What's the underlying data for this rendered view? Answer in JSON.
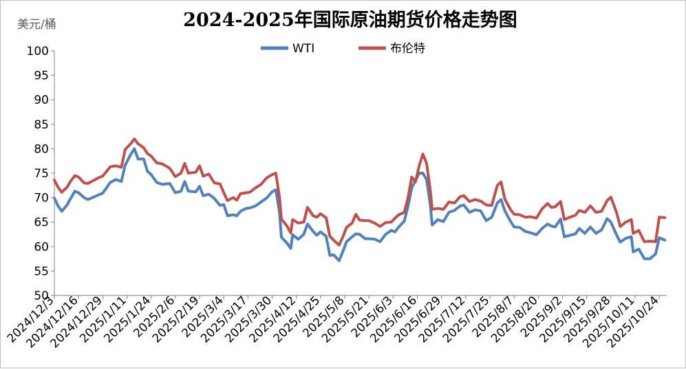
{
  "chart_data": {
    "type": "line",
    "title": "2024-2025年国际原油期货价格走势图",
    "ylabel": "美元/桶",
    "xlabel": "",
    "ylim": [
      50,
      100
    ],
    "yticks": [
      "50",
      "55",
      "60",
      "65",
      "70",
      "75",
      "80",
      "85",
      "90",
      "95",
      "100"
    ],
    "grid": false,
    "legend_position": "top-center",
    "x_tick_labels": [
      "2024/12/3",
      "2024/12/16",
      "2024/12/29",
      "2025/1/11",
      "2025/1/24",
      "2025/2/6",
      "2025/2/19",
      "2025/3/4",
      "2025/3/17",
      "2025/3/30",
      "2025/4/12",
      "2025/4/25",
      "2025/5/8",
      "2025/5/21",
      "2025/6/3",
      "2025/6/16",
      "2025/6/29",
      "2025/7/12",
      "2025/7/25",
      "2025/8/7",
      "2025/8/20",
      "2025/9/2",
      "2025/9/15",
      "2025/9/28",
      "2025/10/11",
      "2025/10/24"
    ],
    "x_range": [
      "2024/12/3",
      "2025/10/28"
    ],
    "series": [
      {
        "name": "WTI",
        "color": "#4f81bd",
        "points": [
          [
            "2024/12/3",
            69.9
          ],
          [
            "2024/12/5",
            68.3
          ],
          [
            "2024/12/7",
            67.2
          ],
          [
            "2024/12/10",
            68.6
          ],
          [
            "2024/12/12",
            70.0
          ],
          [
            "2024/12/14",
            71.3
          ],
          [
            "2024/12/16",
            71.0
          ],
          [
            "2024/12/19",
            70.0
          ],
          [
            "2024/12/21",
            69.6
          ],
          [
            "2024/12/24",
            70.1
          ],
          [
            "2024/12/27",
            70.6
          ],
          [
            "2024/12/29",
            70.9
          ],
          [
            "2025/1/2",
            73.1
          ],
          [
            "2025/1/5",
            73.7
          ],
          [
            "2025/1/8",
            73.3
          ],
          [
            "2025/1/10",
            76.6
          ],
          [
            "2025/1/13",
            78.8
          ],
          [
            "2025/1/15",
            80.0
          ],
          [
            "2025/1/17",
            77.9
          ],
          [
            "2025/1/20",
            77.9
          ],
          [
            "2025/1/22",
            75.4
          ],
          [
            "2025/1/24",
            74.7
          ],
          [
            "2025/1/27",
            73.1
          ],
          [
            "2025/1/30",
            72.7
          ],
          [
            "2025/2/3",
            72.9
          ],
          [
            "2025/2/6",
            71.0
          ],
          [
            "2025/2/9",
            71.3
          ],
          [
            "2025/2/11",
            73.3
          ],
          [
            "2025/2/13",
            71.3
          ],
          [
            "2025/2/17",
            71.2
          ],
          [
            "2025/2/19",
            72.3
          ],
          [
            "2025/2/21",
            70.4
          ],
          [
            "2025/2/24",
            70.7
          ],
          [
            "2025/2/27",
            69.8
          ],
          [
            "2025/3/2",
            68.4
          ],
          [
            "2025/3/4",
            68.6
          ],
          [
            "2025/3/6",
            66.3
          ],
          [
            "2025/3/9",
            66.5
          ],
          [
            "2025/3/11",
            66.3
          ],
          [
            "2025/3/13",
            67.2
          ],
          [
            "2025/3/16",
            67.8
          ],
          [
            "2025/3/18",
            67.9
          ],
          [
            "2025/3/21",
            68.3
          ],
          [
            "2025/3/24",
            69.1
          ],
          [
            "2025/3/27",
            69.9
          ],
          [
            "2025/3/30",
            71.2
          ],
          [
            "2025/4/1",
            71.6
          ],
          [
            "2025/4/3",
            66.9
          ],
          [
            "2025/4/4",
            61.9
          ],
          [
            "2025/4/7",
            60.7
          ],
          [
            "2025/4/9",
            59.6
          ],
          [
            "2025/4/10",
            62.4
          ],
          [
            "2025/4/13",
            61.5
          ],
          [
            "2025/4/16",
            62.5
          ],
          [
            "2025/4/18",
            64.6
          ],
          [
            "2025/4/21",
            63.1
          ],
          [
            "2025/4/23",
            62.3
          ],
          [
            "2025/4/25",
            63.0
          ],
          [
            "2025/4/28",
            62.1
          ],
          [
            "2025/4/30",
            58.2
          ],
          [
            "2025/5/2",
            58.3
          ],
          [
            "2025/5/5",
            57.1
          ],
          [
            "2025/5/7",
            59.0
          ],
          [
            "2025/5/9",
            61.0
          ],
          [
            "2025/5/12",
            62.0
          ],
          [
            "2025/5/14",
            62.6
          ],
          [
            "2025/5/16",
            62.5
          ],
          [
            "2025/5/19",
            61.6
          ],
          [
            "2025/5/21",
            61.6
          ],
          [
            "2025/5/24",
            61.5
          ],
          [
            "2025/5/27",
            61.0
          ],
          [
            "2025/5/30",
            62.5
          ],
          [
            "2025/6/2",
            63.3
          ],
          [
            "2025/6/4",
            63.0
          ],
          [
            "2025/6/6",
            64.0
          ],
          [
            "2025/6/9",
            65.2
          ],
          [
            "2025/6/11",
            68.2
          ],
          [
            "2025/6/13",
            72.0
          ],
          [
            "2025/6/15",
            73.5
          ],
          [
            "2025/6/17",
            75.0
          ],
          [
            "2025/6/19",
            75.0
          ],
          [
            "2025/6/21",
            73.7
          ],
          [
            "2025/6/23",
            68.5
          ],
          [
            "2025/6/24",
            64.4
          ],
          [
            "2025/6/27",
            65.5
          ],
          [
            "2025/6/30",
            65.1
          ],
          [
            "2025/7/3",
            67.0
          ],
          [
            "2025/7/6",
            67.4
          ],
          [
            "2025/7/9",
            68.3
          ],
          [
            "2025/7/11",
            68.5
          ],
          [
            "2025/7/14",
            67.0
          ],
          [
            "2025/7/17",
            67.5
          ],
          [
            "2025/7/20",
            67.3
          ],
          [
            "2025/7/23",
            65.3
          ],
          [
            "2025/7/26",
            66.0
          ],
          [
            "2025/7/29",
            68.9
          ],
          [
            "2025/7/31",
            69.6
          ],
          [
            "2025/8/2",
            67.3
          ],
          [
            "2025/8/5",
            65.2
          ],
          [
            "2025/8/7",
            64.0
          ],
          [
            "2025/8/10",
            63.9
          ],
          [
            "2025/8/13",
            63.1
          ],
          [
            "2025/8/16",
            62.8
          ],
          [
            "2025/8/19",
            62.4
          ],
          [
            "2025/8/22",
            63.7
          ],
          [
            "2025/8/25",
            64.6
          ],
          [
            "2025/8/27",
            64.2
          ],
          [
            "2025/8/29",
            64.0
          ],
          [
            "2025/9/1",
            65.6
          ],
          [
            "2025/9/3",
            62.0
          ],
          [
            "2025/9/6",
            62.3
          ],
          [
            "2025/9/9",
            62.6
          ],
          [
            "2025/9/11",
            63.7
          ],
          [
            "2025/9/14",
            62.7
          ],
          [
            "2025/9/17",
            64.0
          ],
          [
            "2025/9/20",
            62.7
          ],
          [
            "2025/9/23",
            63.4
          ],
          [
            "2025/9/26",
            65.7
          ],
          [
            "2025/9/28",
            65.0
          ],
          [
            "2025/10/1",
            62.4
          ],
          [
            "2025/10/3",
            60.9
          ],
          [
            "2025/10/6",
            61.7
          ],
          [
            "2025/10/9",
            62.0
          ],
          [
            "2025/10/10",
            58.9
          ],
          [
            "2025/10/13",
            59.5
          ],
          [
            "2025/10/16",
            57.5
          ],
          [
            "2025/10/19",
            57.5
          ],
          [
            "2025/10/22",
            58.5
          ],
          [
            "2025/10/24",
            61.8
          ],
          [
            "2025/10/27",
            61.3
          ]
        ]
      },
      {
        "name": "布伦特",
        "color": "#c0504d",
        "points": [
          [
            "2024/12/3",
            73.6
          ],
          [
            "2024/12/5",
            72.1
          ],
          [
            "2024/12/7",
            71.1
          ],
          [
            "2024/12/10",
            72.2
          ],
          [
            "2024/12/12",
            73.5
          ],
          [
            "2024/12/14",
            74.5
          ],
          [
            "2024/12/16",
            74.2
          ],
          [
            "2024/12/19",
            73.0
          ],
          [
            "2024/12/21",
            72.9
          ],
          [
            "2024/12/24",
            73.5
          ],
          [
            "2024/12/27",
            74.1
          ],
          [
            "2024/12/29",
            74.4
          ],
          [
            "2025/1/2",
            76.3
          ],
          [
            "2025/1/5",
            76.5
          ],
          [
            "2025/1/8",
            76.2
          ],
          [
            "2025/1/10",
            79.8
          ],
          [
            "2025/1/13",
            81.0
          ],
          [
            "2025/1/15",
            82.0
          ],
          [
            "2025/1/17",
            81.0
          ],
          [
            "2025/1/20",
            80.2
          ],
          [
            "2025/1/22",
            79.0
          ],
          [
            "2025/1/24",
            78.5
          ],
          [
            "2025/1/27",
            77.1
          ],
          [
            "2025/1/30",
            76.9
          ],
          [
            "2025/2/3",
            76.0
          ],
          [
            "2025/2/6",
            74.3
          ],
          [
            "2025/2/9",
            75.0
          ],
          [
            "2025/2/11",
            77.0
          ],
          [
            "2025/2/13",
            75.0
          ],
          [
            "2025/2/17",
            75.2
          ],
          [
            "2025/2/19",
            76.5
          ],
          [
            "2025/2/21",
            74.4
          ],
          [
            "2025/2/24",
            74.8
          ],
          [
            "2025/2/27",
            73.0
          ],
          [
            "2025/3/2",
            72.8
          ],
          [
            "2025/3/4",
            71.0
          ],
          [
            "2025/3/6",
            69.4
          ],
          [
            "2025/3/9",
            70.0
          ],
          [
            "2025/3/11",
            69.5
          ],
          [
            "2025/3/13",
            70.8
          ],
          [
            "2025/3/16",
            71.0
          ],
          [
            "2025/3/18",
            71.1
          ],
          [
            "2025/3/21",
            72.0
          ],
          [
            "2025/3/24",
            72.7
          ],
          [
            "2025/3/27",
            74.0
          ],
          [
            "2025/3/30",
            74.7
          ],
          [
            "2025/4/1",
            75.0
          ],
          [
            "2025/4/3",
            70.0
          ],
          [
            "2025/4/4",
            65.6
          ],
          [
            "2025/4/7",
            64.2
          ],
          [
            "2025/4/9",
            62.8
          ],
          [
            "2025/4/10",
            65.5
          ],
          [
            "2025/4/13",
            64.8
          ],
          [
            "2025/4/16",
            65.0
          ],
          [
            "2025/4/18",
            68.0
          ],
          [
            "2025/4/21",
            66.3
          ],
          [
            "2025/4/23",
            66.0
          ],
          [
            "2025/4/25",
            66.7
          ],
          [
            "2025/4/28",
            65.9
          ],
          [
            "2025/4/30",
            62.1
          ],
          [
            "2025/5/2",
            61.3
          ],
          [
            "2025/5/5",
            60.3
          ],
          [
            "2025/5/7",
            62.0
          ],
          [
            "2025/5/9",
            63.9
          ],
          [
            "2025/5/12",
            64.8
          ],
          [
            "2025/5/14",
            66.6
          ],
          [
            "2025/5/16",
            65.4
          ],
          [
            "2025/5/19",
            65.3
          ],
          [
            "2025/5/21",
            65.3
          ],
          [
            "2025/5/24",
            64.8
          ],
          [
            "2025/5/27",
            64.1
          ],
          [
            "2025/5/30",
            64.9
          ],
          [
            "2025/6/2",
            65.0
          ],
          [
            "2025/6/4",
            65.8
          ],
          [
            "2025/6/6",
            66.5
          ],
          [
            "2025/6/9",
            67.0
          ],
          [
            "2025/6/11",
            70.0
          ],
          [
            "2025/6/13",
            74.2
          ],
          [
            "2025/6/15",
            73.2
          ],
          [
            "2025/6/17",
            76.5
          ],
          [
            "2025/6/19",
            78.9
          ],
          [
            "2025/6/21",
            77.0
          ],
          [
            "2025/6/23",
            71.5
          ],
          [
            "2025/6/24",
            67.6
          ],
          [
            "2025/6/27",
            67.8
          ],
          [
            "2025/6/30",
            67.6
          ],
          [
            "2025/7/3",
            69.1
          ],
          [
            "2025/7/6",
            68.9
          ],
          [
            "2025/7/9",
            70.2
          ],
          [
            "2025/7/11",
            70.4
          ],
          [
            "2025/7/14",
            69.2
          ],
          [
            "2025/7/17",
            69.6
          ],
          [
            "2025/7/20",
            69.3
          ],
          [
            "2025/7/23",
            68.5
          ],
          [
            "2025/7/26",
            68.4
          ],
          [
            "2025/7/29",
            72.5
          ],
          [
            "2025/7/31",
            73.2
          ],
          [
            "2025/8/2",
            69.7
          ],
          [
            "2025/8/5",
            67.6
          ],
          [
            "2025/8/7",
            66.6
          ],
          [
            "2025/8/10",
            66.5
          ],
          [
            "2025/8/13",
            66.0
          ],
          [
            "2025/8/16",
            66.1
          ],
          [
            "2025/8/19",
            65.8
          ],
          [
            "2025/8/22",
            67.7
          ],
          [
            "2025/8/25",
            68.8
          ],
          [
            "2025/8/27",
            68.0
          ],
          [
            "2025/8/29",
            68.1
          ],
          [
            "2025/9/1",
            69.2
          ],
          [
            "2025/9/3",
            65.5
          ],
          [
            "2025/9/6",
            66.0
          ],
          [
            "2025/9/9",
            66.4
          ],
          [
            "2025/9/11",
            67.4
          ],
          [
            "2025/9/14",
            67.0
          ],
          [
            "2025/9/17",
            68.3
          ],
          [
            "2025/9/20",
            67.0
          ],
          [
            "2025/9/23",
            67.2
          ],
          [
            "2025/9/26",
            69.4
          ],
          [
            "2025/9/28",
            70.1
          ],
          [
            "2025/10/1",
            67.0
          ],
          [
            "2025/10/3",
            64.1
          ],
          [
            "2025/10/6",
            65.0
          ],
          [
            "2025/10/9",
            65.5
          ],
          [
            "2025/10/10",
            62.7
          ],
          [
            "2025/10/13",
            63.3
          ],
          [
            "2025/10/16",
            61.0
          ],
          [
            "2025/10/19",
            61.1
          ],
          [
            "2025/10/22",
            61.0
          ],
          [
            "2025/10/24",
            66.0
          ],
          [
            "2025/10/27",
            65.9
          ]
        ]
      }
    ]
  }
}
